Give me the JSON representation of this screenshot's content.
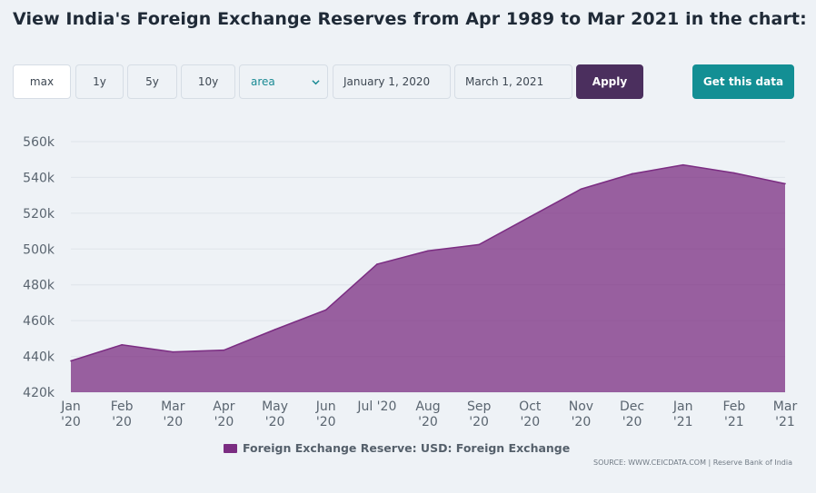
{
  "page": {
    "title": "View India's Foreign Exchange Reserves from Apr 1989 to Mar 2021 in the chart:"
  },
  "toolbar": {
    "range_buttons": [
      "max",
      "1y",
      "5y",
      "10y"
    ],
    "active_range": "max",
    "chart_type_select": "area",
    "start_date": "January 1, 2020",
    "end_date": "March 1, 2021",
    "apply_label": "Apply",
    "get_data_label": "Get this data",
    "colors": {
      "apply": "#4b2f5e",
      "get_data": "#138f94",
      "select_text": "#1a8a94"
    }
  },
  "chart_data": {
    "type": "area",
    "categories": [
      "Jan\n'20",
      "Feb\n'20",
      "Mar\n'20",
      "Apr\n'20",
      "May\n'20",
      "Jun\n'20",
      "Jul '20",
      "Aug\n'20",
      "Sep\n'20",
      "Oct\n'20",
      "Nov\n'20",
      "Dec\n'20",
      "Jan\n'21",
      "Feb\n'21",
      "Mar\n'21"
    ],
    "series": [
      {
        "name": "Foreign Exchange Reserve: USD: Foreign Exchange",
        "color": "#7b2d82",
        "values": [
          437.5,
          446.5,
          442.5,
          443.5,
          455,
          466,
          491.5,
          499,
          502.5,
          518,
          533.5,
          542,
          547,
          542.5,
          536.5
        ]
      }
    ],
    "ylim": [
      420,
      560
    ],
    "y_ticks": [
      "420k",
      "440k",
      "460k",
      "480k",
      "500k",
      "520k",
      "540k",
      "560k"
    ],
    "y_unit": "thousands",
    "grid": true,
    "legend": "bottom"
  },
  "footer": {
    "legend_label": "Foreign Exchange Reserve: USD: Foreign Exchange",
    "source": "SOURCE: WWW.CEICDATA.COM | Reserve Bank of India"
  }
}
